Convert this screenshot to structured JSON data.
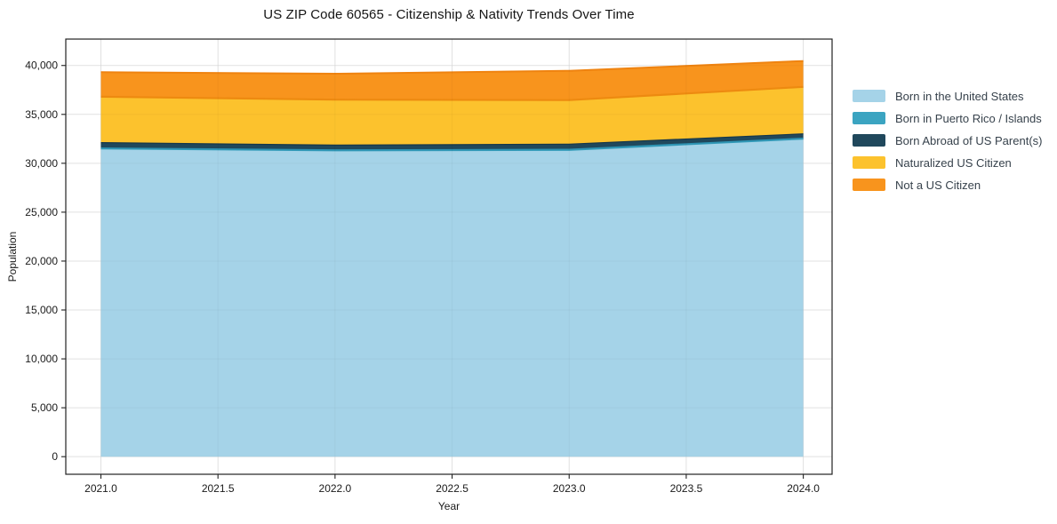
{
  "chart_data": {
    "type": "area",
    "stacked": true,
    "title": "US ZIP Code 60565 - Citizenship & Nativity Trends Over Time",
    "xlabel": "Year",
    "ylabel": "Population",
    "x": [
      2021,
      2022,
      2023,
      2024
    ],
    "series": [
      {
        "name": "Born in the United States",
        "values": [
          31500,
          31300,
          31350,
          32500
        ],
        "color": "#a5d3e8",
        "edge": "#359cba",
        "edge_width": 1.8
      },
      {
        "name": "Born in Puerto Rico / Islands",
        "values": [
          60,
          60,
          60,
          60
        ],
        "color": "#3ba4c1",
        "edge": "#2d93b2",
        "edge_width": 1.5
      },
      {
        "name": "Born Abroad of US Parent(s)",
        "values": [
          550,
          500,
          550,
          450
        ],
        "color": "#20485c",
        "edge": "#16374a",
        "edge_width": 1.2
      },
      {
        "name": "Naturalized US Citizen",
        "values": [
          4700,
          4650,
          4500,
          4800
        ],
        "color": "#fcc22d",
        "edge": "#ed8a10",
        "edge_width": 2.2
      },
      {
        "name": "Not a US Citizen",
        "values": [
          2500,
          2650,
          3000,
          2650
        ],
        "color": "#f8941d",
        "edge": "#ef8310",
        "edge_width": 2.0
      }
    ],
    "xticks": [
      2021.0,
      2021.5,
      2022.0,
      2022.5,
      2023.0,
      2023.5,
      2024.0
    ],
    "xtick_labels": [
      "2021.0",
      "2021.5",
      "2022.0",
      "2022.5",
      "2023.0",
      "2023.5",
      "2024.0"
    ],
    "yticks": [
      0,
      5000,
      10000,
      15000,
      20000,
      25000,
      30000,
      35000,
      40000
    ],
    "ytick_labels": [
      "0",
      "5,000",
      "10,000",
      "15,000",
      "20,000",
      "25,000",
      "30,000",
      "35,000",
      "40,000"
    ],
    "xlim": [
      2020.85,
      2024.123
    ],
    "ylim": [
      -1800,
      42700
    ],
    "grid": true,
    "legend_position": "right",
    "colors": {
      "grid": "#e9e9e9",
      "spine": "#222222",
      "tick_text": "#1a1a1a",
      "plot_bg": "#ffffff"
    }
  }
}
